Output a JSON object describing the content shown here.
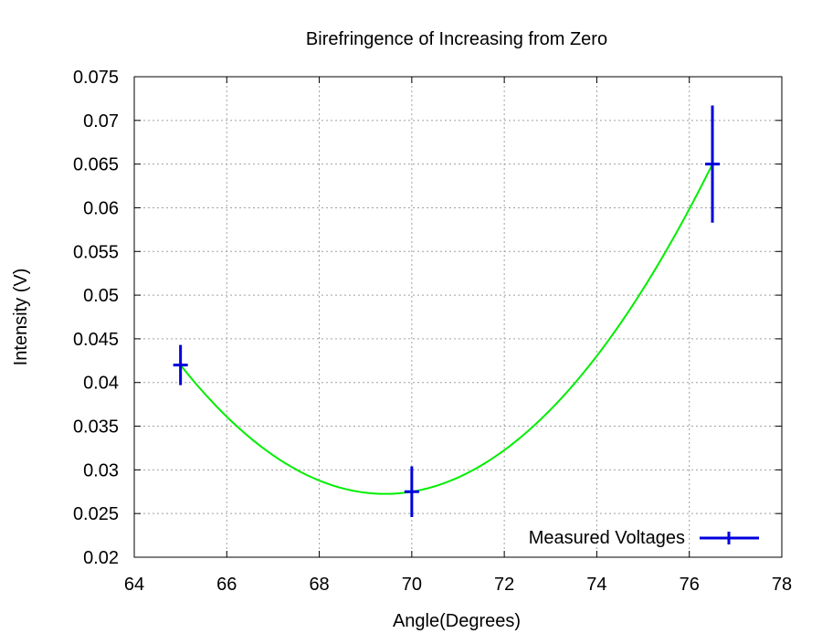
{
  "chart_data": {
    "type": "scatter",
    "title": "Birefringence of Increasing from Zero",
    "xlabel": "Angle(Degrees)",
    "ylabel": "Intensity (V)",
    "xlim": [
      64,
      78
    ],
    "ylim": [
      0.02,
      0.075
    ],
    "xticks": [
      64,
      66,
      68,
      70,
      72,
      74,
      76,
      78
    ],
    "xtick_labels": [
      "64",
      "66",
      "68",
      "70",
      "72",
      "74",
      "76",
      "78"
    ],
    "yticks": [
      0.02,
      0.025,
      0.03,
      0.035,
      0.04,
      0.045,
      0.05,
      0.055,
      0.06,
      0.065,
      0.07,
      0.075
    ],
    "ytick_labels": [
      "0.02",
      "0.025",
      "0.03",
      "0.035",
      "0.04",
      "0.045",
      "0.05",
      "0.055",
      "0.06",
      "0.065",
      "0.07",
      "0.075"
    ],
    "grid": true,
    "legend_position": "bottom-right",
    "series": [
      {
        "name": "Measured Voltages",
        "kind": "points-with-error-bars",
        "color": "#0000dd",
        "x": [
          65,
          70,
          76.5
        ],
        "y": [
          0.042,
          0.0275,
          0.065
        ],
        "y_error": [
          0.0023,
          0.0029,
          0.0067
        ]
      },
      {
        "kind": "fit-curve",
        "color": "#00ee00",
        "x_range": [
          65,
          76.5
        ],
        "quadratic_through": {
          "x": [
            65,
            70,
            76.5
          ],
          "y": [
            0.042,
            0.0275,
            0.065
          ]
        }
      }
    ]
  }
}
